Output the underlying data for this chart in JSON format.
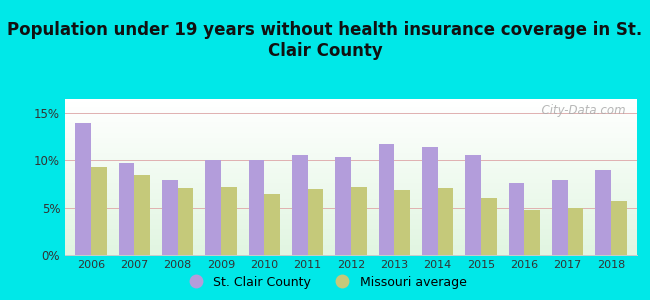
{
  "title": "Population under 19 years without health insurance coverage in St.\nClair County",
  "years": [
    2006,
    2007,
    2008,
    2009,
    2010,
    2011,
    2012,
    2013,
    2014,
    2015,
    2016,
    2017,
    2018
  ],
  "st_clair": [
    14.0,
    9.7,
    7.9,
    10.1,
    10.1,
    10.6,
    10.4,
    11.7,
    11.4,
    10.6,
    7.6,
    7.9,
    9.0
  ],
  "missouri": [
    9.3,
    8.5,
    7.1,
    7.2,
    6.5,
    7.0,
    7.2,
    6.9,
    7.1,
    6.0,
    4.8,
    5.0,
    5.7
  ],
  "bar_color_stclair": "#b39ddb",
  "bar_color_missouri": "#c5c97a",
  "background_color": "#00e8e8",
  "title_fontsize": 12,
  "ytick_vals": [
    0,
    5,
    10,
    15
  ],
  "ylabel_ticks": [
    "0%",
    "5%",
    "10%",
    "15%"
  ],
  "ylim": [
    0,
    16.5
  ],
  "watermark": "  City-Data.com",
  "legend_stclair": "St. Clair County",
  "legend_missouri": "Missouri average",
  "bar_width": 0.36
}
